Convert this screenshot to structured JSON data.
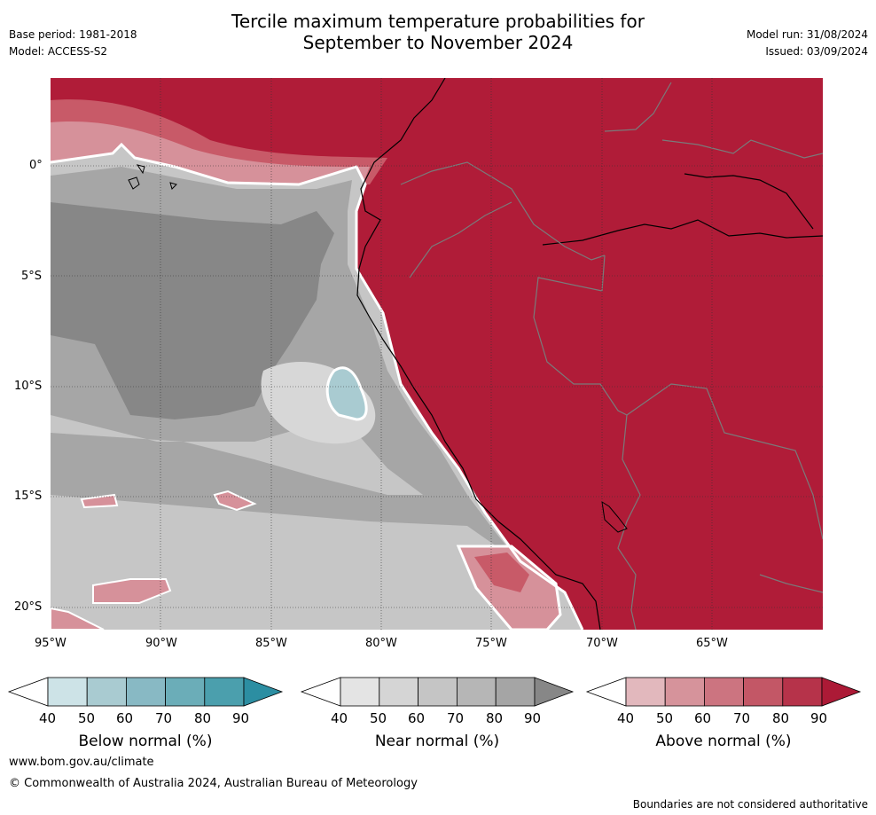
{
  "header": {
    "title_line1": "Tercile maximum temperature probabilities for",
    "title_line2": "September to November 2024",
    "base_period": "Base period: 1981-2018",
    "model": "Model: ACCESS-S2",
    "model_run": "Model run: 31/08/2024",
    "issued": "Issued: 03/09/2024"
  },
  "map": {
    "lat_labels": [
      "0°",
      "5°S",
      "10°S",
      "15°S",
      "20°S"
    ],
    "lon_labels": [
      "95°W",
      "90°W",
      "85°W",
      "80°W",
      "75°W",
      "70°W",
      "65°W"
    ]
  },
  "colors": {
    "ocean_dark_grey": "#878787",
    "ocean_grey": "#a6a6a6",
    "ocean_mid_grey": "#c6c6c6",
    "ocean_light_grey": "#d7d7d7",
    "below_light_blue": "#a9cbd1",
    "above_red": "#b01c38",
    "above_mid_red": "#c85a68",
    "above_light_red": "#d6919a",
    "border_grey": "#7a7a7a"
  },
  "colorbars": [
    {
      "name": "below",
      "label": "Below normal (%)",
      "ticks": [
        "40",
        "50",
        "60",
        "70",
        "80",
        "90"
      ],
      "colors": [
        "#cde3e7",
        "#a9cbd1",
        "#88b9c4",
        "#6badb8",
        "#4b9fad",
        "#2c8ea2"
      ]
    },
    {
      "name": "near",
      "label": "Near normal (%)",
      "ticks": [
        "40",
        "50",
        "60",
        "70",
        "80",
        "90"
      ],
      "colors": [
        "#e4e4e4",
        "#d5d5d5",
        "#c5c5c5",
        "#b6b6b6",
        "#a5a5a5",
        "#878787"
      ]
    },
    {
      "name": "above",
      "label": "Above normal (%)",
      "ticks": [
        "40",
        "50",
        "60",
        "70",
        "80",
        "90"
      ],
      "colors": [
        "#e2b8bd",
        "#d6939b",
        "#cc7480",
        "#c35766",
        "#b6334a",
        "#ac1a36"
      ]
    }
  ],
  "footer": {
    "website": "www.bom.gov.au/climate",
    "copyright": "© Commonwealth of Australia 2024, Australian Bureau of Meteorology",
    "disclaimer": "Boundaries are not considered authoritative"
  }
}
